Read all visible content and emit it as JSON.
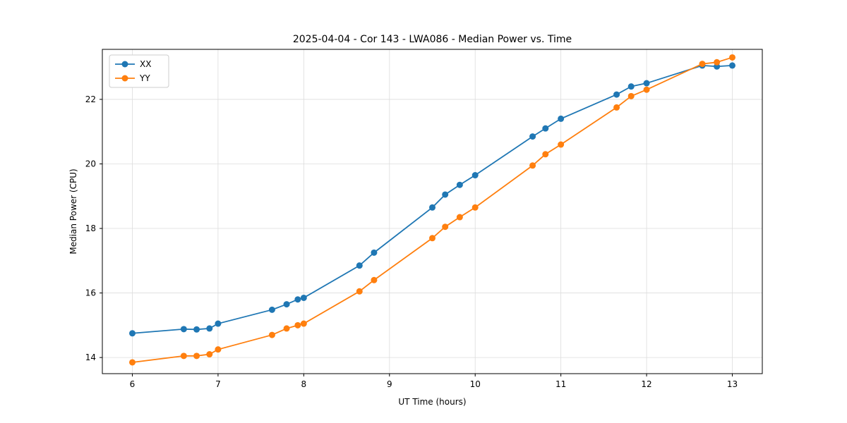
{
  "chart_data": {
    "type": "line",
    "title": "2025-04-04 - Cor 143 - LWA086 - Median Power vs. Time",
    "xlabel": "UT Time (hours)",
    "ylabel": "Median Power (CPU)",
    "xlim": [
      5.65,
      13.35
    ],
    "ylim": [
      13.5,
      23.55
    ],
    "xticks": [
      6,
      7,
      8,
      9,
      10,
      11,
      12,
      13
    ],
    "yticks": [
      14,
      16,
      18,
      20,
      22
    ],
    "grid": true,
    "legend_position": "upper left",
    "x": [
      6.0,
      6.6,
      6.75,
      6.9,
      7.0,
      7.63,
      7.8,
      7.93,
      8.0,
      8.65,
      8.82,
      9.5,
      9.65,
      9.82,
      10.0,
      10.67,
      10.82,
      11.0,
      11.65,
      11.82,
      12.0,
      12.65,
      12.82,
      13.0
    ],
    "series": [
      {
        "name": "XX",
        "color": "#1f77b4",
        "marker": "circle",
        "values": [
          14.75,
          14.88,
          14.87,
          14.9,
          15.05,
          15.48,
          15.65,
          15.8,
          15.85,
          16.85,
          17.25,
          18.65,
          19.05,
          19.35,
          19.65,
          20.85,
          21.1,
          21.4,
          22.15,
          22.4,
          22.5,
          23.05,
          23.02,
          23.05
        ]
      },
      {
        "name": "YY",
        "color": "#ff7f0e",
        "marker": "circle",
        "values": [
          13.85,
          14.05,
          14.05,
          14.1,
          14.25,
          14.7,
          14.9,
          15.0,
          15.05,
          16.05,
          16.4,
          17.7,
          18.05,
          18.35,
          18.65,
          19.95,
          20.3,
          20.6,
          21.75,
          22.1,
          22.3,
          23.1,
          23.15,
          23.3
        ]
      }
    ]
  }
}
